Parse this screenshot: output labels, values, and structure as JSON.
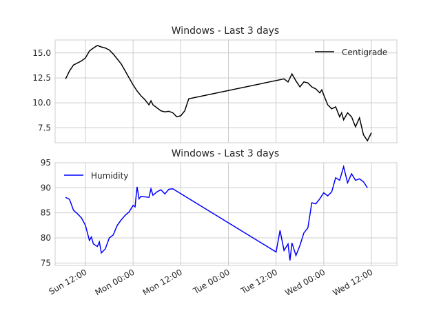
{
  "chart_data": [
    {
      "type": "line",
      "title": "Windows - Last 3 days",
      "ylim": [
        6.0,
        16.3
      ],
      "yticks": [
        "7.5",
        "10.0",
        "12.5",
        "15.0"
      ],
      "legend_position": "upper right",
      "grid": true,
      "series": [
        {
          "name": "Centigrade",
          "color": "#000000",
          "points": [
            {
              "x": "Sun 07:00",
              "y": 12.4
            },
            {
              "x": "Sun 08:00",
              "y": 13.2
            },
            {
              "x": "Sun 09:00",
              "y": 13.8
            },
            {
              "x": "Sun 10:00",
              "y": 14.0
            },
            {
              "x": "Sun 11:00",
              "y": 14.2
            },
            {
              "x": "Sun 12:00",
              "y": 14.5
            },
            {
              "x": "Sun 13:00",
              "y": 15.2
            },
            {
              "x": "Sun 14:00",
              "y": 15.5
            },
            {
              "x": "Sun 15:00",
              "y": 15.75
            },
            {
              "x": "Sun 16:00",
              "y": 15.6
            },
            {
              "x": "Sun 17:00",
              "y": 15.5
            },
            {
              "x": "Sun 18:00",
              "y": 15.3
            },
            {
              "x": "Sun 19:00",
              "y": 14.9
            },
            {
              "x": "Sun 20:00",
              "y": 14.4
            },
            {
              "x": "Sun 21:00",
              "y": 13.9
            },
            {
              "x": "Sun 22:00",
              "y": 13.2
            },
            {
              "x": "Sun 23:00",
              "y": 12.5
            },
            {
              "x": "Mon 00:00",
              "y": 11.8
            },
            {
              "x": "Mon 01:00",
              "y": 11.2
            },
            {
              "x": "Mon 02:00",
              "y": 10.7
            },
            {
              "x": "Mon 03:00",
              "y": 10.3
            },
            {
              "x": "Mon 04:00",
              "y": 9.8
            },
            {
              "x": "Mon 04:30",
              "y": 10.2
            },
            {
              "x": "Mon 05:00",
              "y": 9.8
            },
            {
              "x": "Mon 06:00",
              "y": 9.5
            },
            {
              "x": "Mon 07:00",
              "y": 9.2
            },
            {
              "x": "Mon 08:00",
              "y": 9.1
            },
            {
              "x": "Mon 09:00",
              "y": 9.15
            },
            {
              "x": "Mon 10:00",
              "y": 9.0
            },
            {
              "x": "Mon 11:00",
              "y": 8.6
            },
            {
              "x": "Mon 12:00",
              "y": 8.7
            },
            {
              "x": "Mon 13:00",
              "y": 9.2
            },
            {
              "x": "Mon 14:00",
              "y": 10.4
            },
            {
              "x": "Tue 14:00",
              "y": 12.4
            },
            {
              "x": "Tue 15:00",
              "y": 12.1
            },
            {
              "x": "Tue 16:00",
              "y": 12.9
            },
            {
              "x": "Tue 17:00",
              "y": 12.2
            },
            {
              "x": "Tue 18:00",
              "y": 11.6
            },
            {
              "x": "Tue 19:00",
              "y": 12.1
            },
            {
              "x": "Tue 20:00",
              "y": 12.0
            },
            {
              "x": "Tue 21:00",
              "y": 11.6
            },
            {
              "x": "Tue 22:00",
              "y": 11.4
            },
            {
              "x": "Tue 23:00",
              "y": 11.0
            },
            {
              "x": "Tue 23:30",
              "y": 11.3
            },
            {
              "x": "Wed 00:00",
              "y": 10.8
            },
            {
              "x": "Wed 01:00",
              "y": 9.8
            },
            {
              "x": "Wed 02:00",
              "y": 9.4
            },
            {
              "x": "Wed 03:00",
              "y": 9.6
            },
            {
              "x": "Wed 04:00",
              "y": 8.6
            },
            {
              "x": "Wed 04:30",
              "y": 9.0
            },
            {
              "x": "Wed 05:00",
              "y": 8.3
            },
            {
              "x": "Wed 06:00",
              "y": 9.0
            },
            {
              "x": "Wed 07:00",
              "y": 8.6
            },
            {
              "x": "Wed 08:00",
              "y": 7.6
            },
            {
              "x": "Wed 09:00",
              "y": 8.5
            },
            {
              "x": "Wed 10:00",
              "y": 6.8
            },
            {
              "x": "Wed 11:00",
              "y": 6.2
            },
            {
              "x": "Wed 12:00",
              "y": 7.0
            }
          ]
        }
      ]
    },
    {
      "type": "line",
      "title": "Windows - Last 3 days",
      "ylim": [
        74.5,
        95.0
      ],
      "yticks": [
        "75",
        "80",
        "85",
        "90",
        "95"
      ],
      "xticks": [
        "Sun 12:00",
        "Mon 00:00",
        "Mon 12:00",
        "Tue 00:00",
        "Tue 12:00",
        "Wed 00:00",
        "Wed 12:00"
      ],
      "legend_position": "upper left",
      "grid": true,
      "series": [
        {
          "name": "Humidity",
          "color": "#0000ff",
          "points": [
            {
              "x": "Sun 07:00",
              "y": 88.1
            },
            {
              "x": "Sun 08:00",
              "y": 87.7
            },
            {
              "x": "Sun 09:00",
              "y": 85.5
            },
            {
              "x": "Sun 10:00",
              "y": 84.8
            },
            {
              "x": "Sun 11:00",
              "y": 84.0
            },
            {
              "x": "Sun 12:00",
              "y": 82.5
            },
            {
              "x": "Sun 13:00",
              "y": 79.5
            },
            {
              "x": "Sun 13:30",
              "y": 80.2
            },
            {
              "x": "Sun 14:00",
              "y": 78.8
            },
            {
              "x": "Sun 15:00",
              "y": 78.3
            },
            {
              "x": "Sun 15:30",
              "y": 79.2
            },
            {
              "x": "Sun 16:00",
              "y": 77.0
            },
            {
              "x": "Sun 17:00",
              "y": 77.8
            },
            {
              "x": "Sun 18:00",
              "y": 80.0
            },
            {
              "x": "Sun 19:00",
              "y": 80.6
            },
            {
              "x": "Sun 20:00",
              "y": 82.5
            },
            {
              "x": "Sun 21:00",
              "y": 83.6
            },
            {
              "x": "Sun 22:00",
              "y": 84.5
            },
            {
              "x": "Sun 23:00",
              "y": 85.2
            },
            {
              "x": "Mon 00:00",
              "y": 86.5
            },
            {
              "x": "Mon 00:30",
              "y": 86.2
            },
            {
              "x": "Mon 01:00",
              "y": 90.2
            },
            {
              "x": "Mon 01:30",
              "y": 87.8
            },
            {
              "x": "Mon 02:00",
              "y": 88.3
            },
            {
              "x": "Mon 04:00",
              "y": 88.1
            },
            {
              "x": "Mon 04:30",
              "y": 89.8
            },
            {
              "x": "Mon 05:00",
              "y": 88.5
            },
            {
              "x": "Mon 06:00",
              "y": 89.2
            },
            {
              "x": "Mon 07:00",
              "y": 89.6
            },
            {
              "x": "Mon 08:00",
              "y": 88.8
            },
            {
              "x": "Mon 09:00",
              "y": 89.7
            },
            {
              "x": "Mon 10:00",
              "y": 89.8
            },
            {
              "x": "Tue 12:00",
              "y": 77.2
            },
            {
              "x": "Tue 13:00",
              "y": 81.5
            },
            {
              "x": "Tue 14:00",
              "y": 77.5
            },
            {
              "x": "Tue 15:00",
              "y": 78.8
            },
            {
              "x": "Tue 15:30",
              "y": 75.5
            },
            {
              "x": "Tue 16:00",
              "y": 79.0
            },
            {
              "x": "Tue 17:00",
              "y": 76.5
            },
            {
              "x": "Tue 18:00",
              "y": 78.5
            },
            {
              "x": "Tue 19:00",
              "y": 81.0
            },
            {
              "x": "Tue 20:00",
              "y": 82.0
            },
            {
              "x": "Tue 21:00",
              "y": 87.0
            },
            {
              "x": "Tue 22:00",
              "y": 86.8
            },
            {
              "x": "Tue 23:00",
              "y": 87.8
            },
            {
              "x": "Wed 00:00",
              "y": 89.0
            },
            {
              "x": "Wed 01:00",
              "y": 88.4
            },
            {
              "x": "Wed 02:00",
              "y": 89.2
            },
            {
              "x": "Wed 03:00",
              "y": 92.0
            },
            {
              "x": "Wed 04:00",
              "y": 91.5
            },
            {
              "x": "Wed 05:00",
              "y": 94.2
            },
            {
              "x": "Wed 06:00",
              "y": 91.0
            },
            {
              "x": "Wed 07:00",
              "y": 92.8
            },
            {
              "x": "Wed 08:00",
              "y": 91.5
            },
            {
              "x": "Wed 09:00",
              "y": 91.8
            },
            {
              "x": "Wed 10:00",
              "y": 91.2
            },
            {
              "x": "Wed 11:00",
              "y": 90.0
            }
          ]
        }
      ]
    }
  ]
}
